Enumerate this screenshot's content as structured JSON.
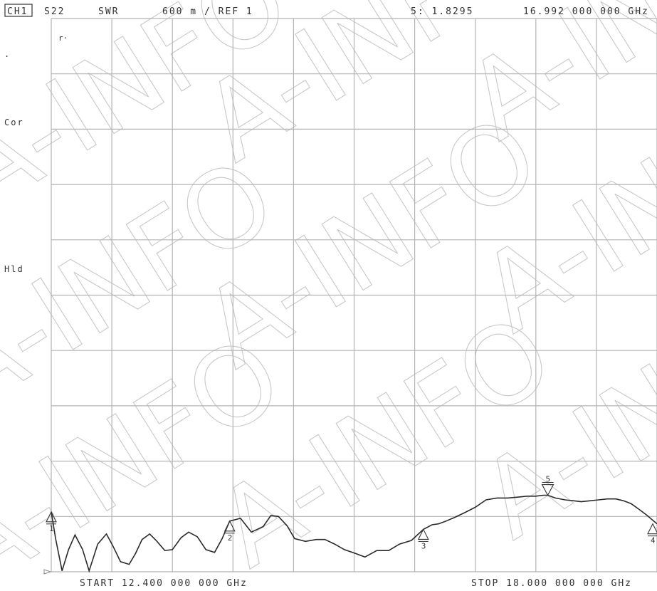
{
  "header": {
    "channel": "CH1",
    "parameter": "S22",
    "format": "SWR",
    "scale": "600 m / REF 1",
    "marker_readout": "5: 1.8295",
    "marker_freq": "16.992 000 000 GHz"
  },
  "side_labels": {
    "dot": ".",
    "cor": "Cor",
    "hld": "Hld",
    "marker_flag": "r·"
  },
  "footer": {
    "start": "START 12.400 000 000 GHz",
    "stop": "STOP 18.000 000 000 GHz"
  },
  "watermark": "A-INFO",
  "colors": {
    "trace": "#2a2a2a",
    "grid": "#b4b4b4",
    "background": "#ffffff"
  },
  "chart_data": {
    "type": "line",
    "title": "S22 SWR",
    "xlabel": "",
    "ylabel": "",
    "xlim": [
      12.4,
      18.0
    ],
    "ylim": [
      1,
      7
    ],
    "grid": true,
    "divisions": {
      "x": 10,
      "y": 10
    },
    "reference_level": 1,
    "scale_per_division": 0.6,
    "series": [
      {
        "name": "S22",
        "x": [
          12.4,
          12.44,
          12.5,
          12.56,
          12.62,
          12.69,
          12.75,
          12.83,
          12.91,
          12.97,
          13.04,
          13.12,
          13.18,
          13.24,
          13.31,
          13.37,
          13.45,
          13.52,
          13.6,
          13.67,
          13.75,
          13.83,
          13.91,
          13.98,
          14.05,
          14.15,
          14.25,
          14.36,
          14.43,
          14.5,
          14.58,
          14.65,
          14.75,
          14.85,
          14.93,
          15.02,
          15.11,
          15.21,
          15.3,
          15.41,
          15.52,
          15.62,
          15.73,
          15.84,
          15.92,
          15.98,
          16.05,
          16.13,
          16.22,
          16.32,
          16.42,
          16.52,
          16.62,
          16.72,
          16.8,
          16.88,
          16.95,
          16.99,
          17.06,
          17.15,
          17.23,
          17.3,
          17.38,
          17.46,
          17.54,
          17.62,
          17.69,
          17.76,
          17.83,
          17.91,
          18.0
        ],
        "y": [
          1.65,
          1.36,
          1.01,
          1.24,
          1.4,
          1.24,
          1.01,
          1.3,
          1.41,
          1.28,
          1.11,
          1.08,
          1.2,
          1.35,
          1.41,
          1.34,
          1.23,
          1.24,
          1.37,
          1.43,
          1.38,
          1.24,
          1.21,
          1.36,
          1.55,
          1.58,
          1.43,
          1.49,
          1.61,
          1.6,
          1.5,
          1.36,
          1.33,
          1.35,
          1.35,
          1.3,
          1.24,
          1.2,
          1.16,
          1.23,
          1.23,
          1.3,
          1.34,
          1.46,
          1.51,
          1.52,
          1.55,
          1.59,
          1.64,
          1.7,
          1.78,
          1.8,
          1.8,
          1.81,
          1.82,
          1.82,
          1.83,
          1.83,
          1.8,
          1.78,
          1.77,
          1.76,
          1.77,
          1.78,
          1.79,
          1.79,
          1.77,
          1.74,
          1.68,
          1.61,
          1.52
        ]
      }
    ],
    "markers": [
      {
        "id": "1",
        "x": 12.4,
        "y": 1.65,
        "label_side": "below",
        "pointer": "up"
      },
      {
        "id": "2",
        "x": 14.05,
        "y": 1.55,
        "label_side": "below",
        "pointer": "up"
      },
      {
        "id": "3",
        "x": 15.84,
        "y": 1.46,
        "label_side": "below",
        "pointer": "up"
      },
      {
        "id": "4",
        "x": 18.0,
        "y": 1.52,
        "label_side": "below",
        "pointer": "up"
      },
      {
        "id": "5",
        "x": 16.99,
        "y": 1.83,
        "label_side": "above",
        "pointer": "down"
      }
    ]
  }
}
